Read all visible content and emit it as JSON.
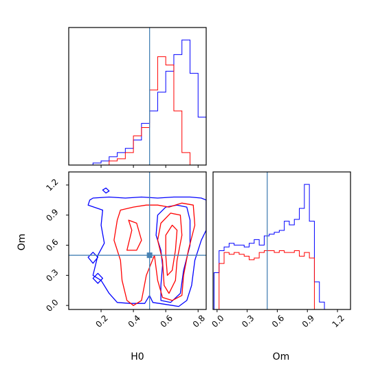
{
  "colors": {
    "series_a": "#0000ff",
    "series_b": "#ff0000",
    "truth": "#4682b4"
  },
  "chart_data": [
    {
      "panel": "H0 marginal",
      "type": "histogram",
      "xlim": [
        0.0,
        0.85
      ],
      "truth": 0.5,
      "yticks_visible": false,
      "bin_edges": [
        0.15,
        0.2,
        0.25,
        0.3,
        0.35,
        0.4,
        0.45,
        0.5,
        0.55,
        0.6,
        0.65,
        0.7,
        0.75,
        0.8,
        0.85
      ],
      "series": [
        {
          "color": "blue",
          "counts": [
            1,
            2,
            4,
            6,
            8,
            12,
            20,
            26,
            35,
            45,
            53,
            60,
            44,
            23
          ]
        },
        {
          "color": "red",
          "counts": [
            0,
            0,
            2,
            3,
            6,
            14,
            18,
            36,
            52,
            48,
            26,
            6,
            0,
            0
          ]
        }
      ]
    },
    {
      "panel": "H0 vs Om",
      "type": "contour",
      "xlabel": "H0",
      "ylabel": "Om",
      "xticks": [
        "0.2",
        "0.4",
        "0.6",
        "0.8"
      ],
      "yticks": [
        "0.0",
        "0.3",
        "0.6",
        "0.9",
        "1.2"
      ],
      "xlim": [
        0.0,
        0.85
      ],
      "ylim": [
        -0.04,
        1.33
      ],
      "truth": {
        "H0": 0.5,
        "Om": 0.5
      },
      "series": [
        {
          "color": "blue",
          "levels": 2
        },
        {
          "color": "red",
          "levels": 3
        }
      ]
    },
    {
      "panel": "Om marginal",
      "type": "histogram",
      "xlabel": "Om",
      "xticks": [
        "0.0",
        "0.3",
        "0.6",
        "0.9",
        "1.2"
      ],
      "xlim": [
        -0.04,
        1.33
      ],
      "truth": 0.5,
      "yticks_visible": false,
      "bin_edges": [
        -0.03,
        0.02,
        0.07,
        0.12,
        0.17,
        0.22,
        0.27,
        0.32,
        0.37,
        0.42,
        0.47,
        0.52,
        0.57,
        0.62,
        0.67,
        0.72,
        0.77,
        0.82,
        0.87,
        0.92,
        0.97,
        1.02,
        1.07,
        1.12
      ],
      "series": [
        {
          "color": "blue",
          "counts": [
            20,
            32,
            34,
            36,
            35,
            35,
            34,
            36,
            38,
            35,
            40,
            41,
            42,
            43,
            48,
            46,
            49,
            55,
            68,
            48,
            15,
            4,
            0
          ]
        },
        {
          "color": "red",
          "counts": [
            0,
            25,
            31,
            30,
            31,
            30,
            29,
            27,
            28,
            31,
            32,
            32,
            31,
            32,
            31,
            31,
            32,
            29,
            31,
            28,
            0,
            0,
            0
          ]
        }
      ]
    }
  ]
}
